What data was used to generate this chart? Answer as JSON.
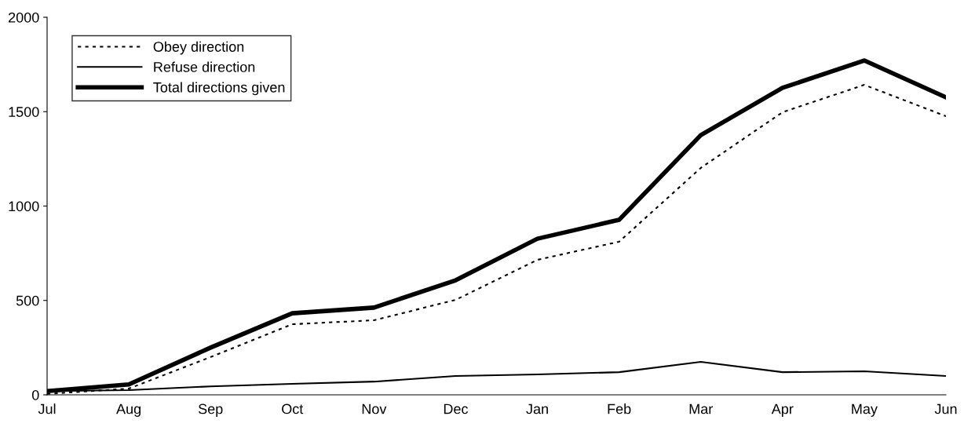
{
  "chart_data": {
    "type": "line",
    "categories": [
      "Jul",
      "Aug",
      "Sep",
      "Oct",
      "Nov",
      "Dec",
      "Jan",
      "Feb",
      "Mar",
      "Apr",
      "May",
      "Jun"
    ],
    "series": [
      {
        "name": "Obey direction",
        "color": "#000000",
        "line_style": "dotted",
        "values": [
          5,
          33,
          200,
          374,
          395,
          503,
          715,
          811,
          1202,
          1497,
          1642,
          1476
        ]
      },
      {
        "name": "Refuse direction",
        "color": "#000000",
        "line_style": "solid",
        "values": [
          20,
          25,
          45,
          58,
          70,
          100,
          108,
          120,
          175,
          120,
          125,
          100
        ]
      },
      {
        "name": "Total directions given",
        "color": "#000000",
        "line_style": "solid",
        "values": [
          20,
          55,
          250,
          432,
          462,
          607,
          827,
          927,
          1376,
          1626,
          1771,
          1576
        ]
      }
    ],
    "ylim": [
      0,
      2000
    ],
    "yticks": [
      0,
      500,
      1000,
      1500,
      2000
    ],
    "grid": false,
    "legend": "top left",
    "marker": "none"
  }
}
